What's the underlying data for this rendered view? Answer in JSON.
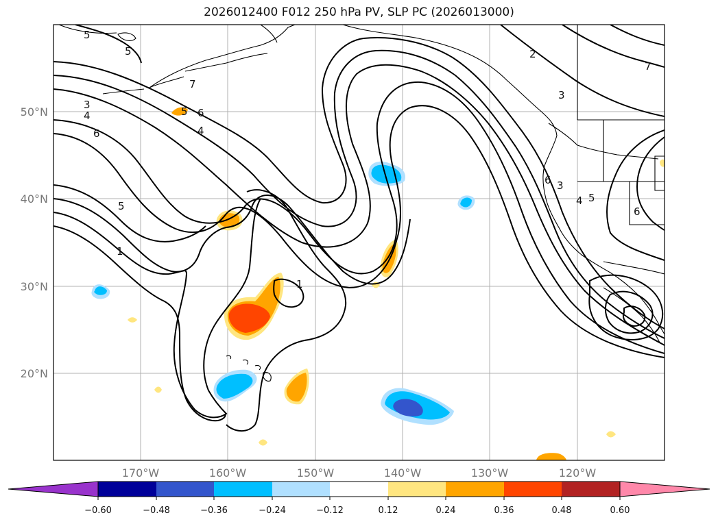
{
  "title": "2026012400 F012 250 hPa PV, SLP PC (2026013000)",
  "lat_labels": [
    "50°N",
    "40°N",
    "30°N",
    "20°N"
  ],
  "lon_labels": [
    "170°W",
    "160°W",
    "150°W",
    "140°W",
    "130°W",
    "120°W"
  ],
  "contour_labels": [
    "5",
    "5",
    "3",
    "4",
    "6",
    "5",
    "1",
    "7",
    "5",
    "6",
    "4",
    "1",
    "2",
    "3",
    "3",
    "4",
    "5",
    "6",
    "7",
    "6"
  ],
  "colorbar": {
    "colors": [
      "#9933cc",
      "#000099",
      "#3355cc",
      "#00bfff",
      "#b0e0ff",
      "#ffffff",
      "#ffe680",
      "#ffa500",
      "#ff4500",
      "#b22222",
      "#ff88aa"
    ],
    "tick_labels": [
      "−0.60",
      "−0.48",
      "−0.36",
      "−0.24",
      "−0.12",
      "0.12",
      "0.24",
      "0.36",
      "0.48",
      "0.60"
    ]
  }
}
